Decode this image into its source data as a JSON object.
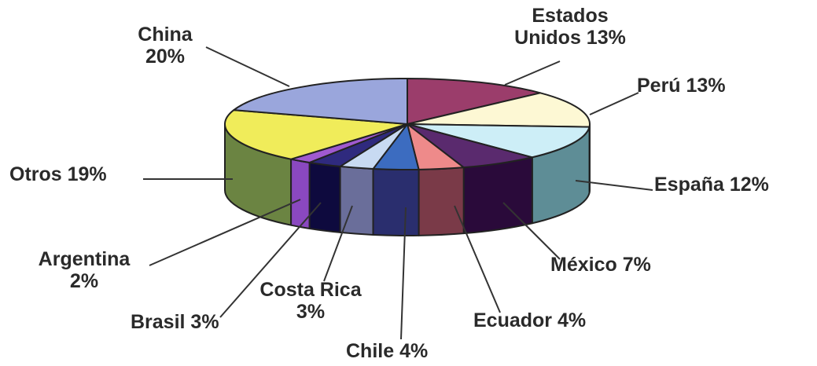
{
  "chart_data": {
    "type": "pie",
    "style": "3d",
    "slices": [
      {
        "label": "Estados Unidos",
        "value": 13,
        "display": "Estados Unidos 13%",
        "top_color": "#9b3d6b",
        "side_color": "#7b2e52"
      },
      {
        "label": "Perú",
        "value": 13,
        "display": "Perú 13%",
        "top_color": "#fdf8d4",
        "side_color": "#e7ddb0"
      },
      {
        "label": "España",
        "value": 12,
        "display": "España 12%",
        "top_color": "#cdeef7",
        "side_color": "#5e8d96"
      },
      {
        "label": "México",
        "value": 7,
        "display": "México 7%",
        "top_color": "#5a2a6e",
        "side_color": "#2a0a3a"
      },
      {
        "label": "Ecuador",
        "value": 4,
        "display": "Ecuador 4%",
        "top_color": "#ee8a8a",
        "side_color": "#7a3a48"
      },
      {
        "label": "Chile",
        "value": 4,
        "display": "Chile 4%",
        "top_color": "#3c6cc0",
        "side_color": "#2a2e6e"
      },
      {
        "label": "Costa Rica",
        "value": 3,
        "display": "Costa Rica 3%",
        "top_color": "#c8daf2",
        "side_color": "#6a6e9a"
      },
      {
        "label": "Brasil",
        "value": 3,
        "display": "Brasil 3%",
        "top_color": "#2f2a7e",
        "side_color": "#0e0a3e"
      },
      {
        "label": "Argentina",
        "value": 2,
        "display": "Argentina 2%",
        "top_color": "#a05ad0",
        "side_color": "#8a48c0"
      },
      {
        "label": "Otros",
        "value": 19,
        "display": "Otros 19%",
        "top_color": "#f0ec5a",
        "side_color": "#6b8442"
      },
      {
        "label": "China",
        "value": 20,
        "display": "China 20%",
        "top_color": "#9aa6dc",
        "side_color": "#6a74b0"
      }
    ],
    "labels": {
      "estados_unidos": [
        "Estados",
        "Unidos 13%"
      ],
      "peru": "Perú 13%",
      "espana": "España 12%",
      "mexico": "México 7%",
      "ecuador": "Ecuador 4%",
      "chile": "Chile 4%",
      "costa_rica": [
        "Costa Rica",
        "3%"
      ],
      "brasil": "Brasil 3%",
      "argentina": [
        "Argentina",
        "2%"
      ],
      "otros": "Otros 19%",
      "china": [
        "China",
        "20%"
      ]
    }
  }
}
